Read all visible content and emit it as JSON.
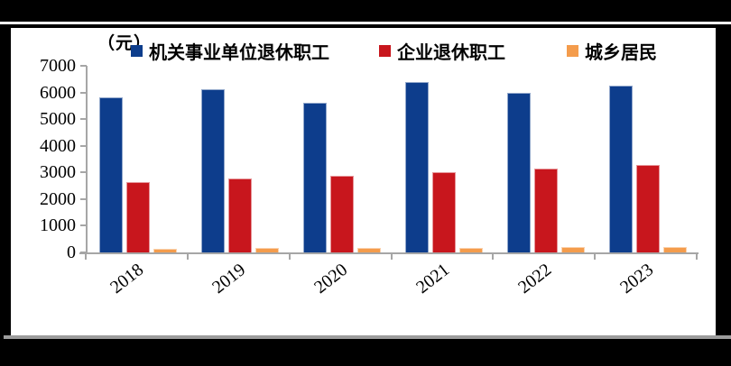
{
  "frame": {
    "background": "#000000",
    "panel_background": "#ffffff",
    "top_rule_color": "#ffffff",
    "bottom_rule_color": "#9c9c9c"
  },
  "chart_data": {
    "type": "bar",
    "title": "",
    "unit_label": "（元）",
    "categories": [
      "2018",
      "2019",
      "2020",
      "2021",
      "2022",
      "2023"
    ],
    "series": [
      {
        "name": "机关事业单位退休职工",
        "color": "#0d3d8c",
        "values": [
          5810,
          6120,
          5630,
          6400,
          5990,
          6240
        ]
      },
      {
        "name": "企业退休职工",
        "color": "#c8161d",
        "values": [
          2640,
          2770,
          2890,
          3020,
          3140,
          3270
        ]
      },
      {
        "name": "城乡居民",
        "color": "#f49c4c",
        "values": [
          150,
          160,
          170,
          185,
          200,
          210
        ]
      }
    ],
    "ylim": [
      0,
      7000
    ],
    "y_ticks": [
      0,
      1000,
      2000,
      3000,
      4000,
      5000,
      6000,
      7000
    ],
    "xlabel": "",
    "ylabel": "",
    "grid": false,
    "legend_position": "top",
    "axis_color": "#a6a6a6",
    "text_color": "#000000"
  }
}
